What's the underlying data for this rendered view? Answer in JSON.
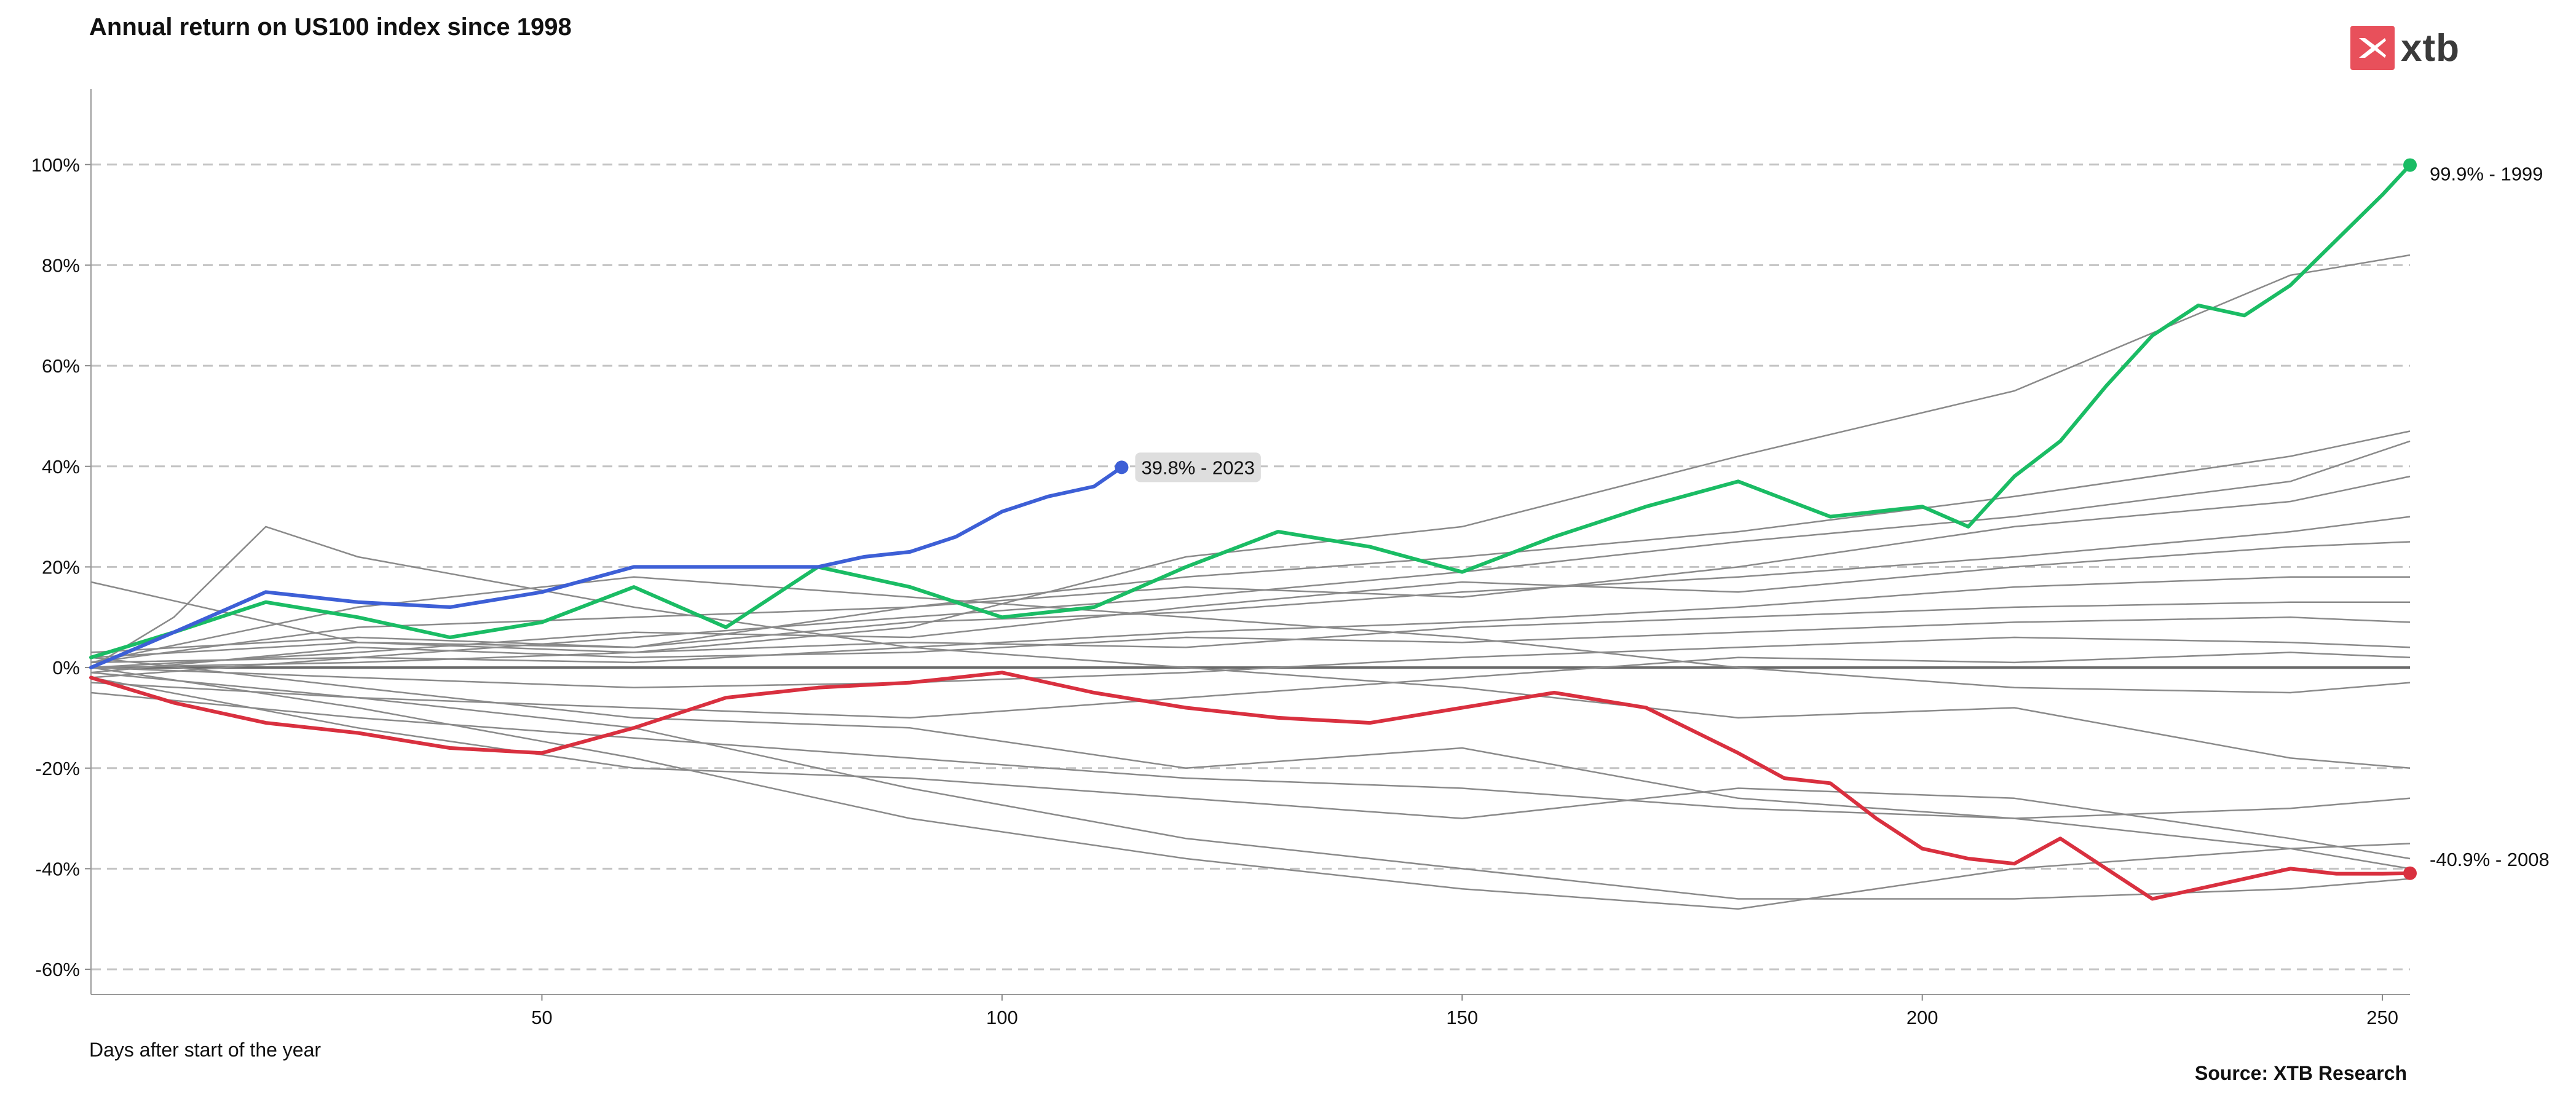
{
  "header": {
    "title": "Annual return on US100 index since 1998"
  },
  "brand": {
    "logo_text": "xtb",
    "logo_color": "#e8505b"
  },
  "footer": {
    "xlabel": "Days after start of the year",
    "source": "Source: XTB Research"
  },
  "chart_data": {
    "type": "line",
    "title": "Annual return on US100 index since 1998",
    "xlabel": "Days after start of the year",
    "ylabel": "",
    "xlim": [
      1,
      253
    ],
    "ylim": [
      -65,
      115
    ],
    "x_ticks": [
      "50",
      "100",
      "150",
      "200",
      "250"
    ],
    "y_ticks": [
      "100%",
      "80%",
      "60%",
      "40%",
      "20%",
      "0%",
      "-20%",
      "-40%",
      "-60%"
    ],
    "grid": "horizontal dashed",
    "highlighted_series": [
      {
        "year": "1999",
        "label": "99.9% - 1999",
        "color": "#1abc64",
        "final_return": 99.9,
        "x": [
          1,
          10,
          20,
          30,
          40,
          50,
          60,
          70,
          80,
          90,
          100,
          110,
          120,
          130,
          140,
          150,
          160,
          170,
          180,
          190,
          200,
          205,
          210,
          215,
          220,
          225,
          230,
          235,
          240,
          245,
          250,
          253
        ],
        "y": [
          2,
          7,
          13,
          10,
          6,
          9,
          16,
          8,
          20,
          16,
          10,
          12,
          20,
          27,
          24,
          19,
          26,
          32,
          37,
          30,
          32,
          28,
          38,
          45,
          56,
          66,
          72,
          70,
          76,
          85,
          94,
          99.9
        ]
      },
      {
        "year": "2008",
        "label": "-40.9% - 2008",
        "color": "#d9303f",
        "final_return": -40.9,
        "x": [
          1,
          10,
          20,
          30,
          40,
          50,
          60,
          70,
          80,
          90,
          100,
          110,
          120,
          130,
          140,
          150,
          160,
          170,
          180,
          185,
          190,
          195,
          200,
          205,
          210,
          215,
          220,
          225,
          230,
          235,
          240,
          245,
          250,
          253
        ],
        "y": [
          -2,
          -7,
          -11,
          -13,
          -16,
          -17,
          -12,
          -6,
          -4,
          -3,
          -1,
          -5,
          -8,
          -10,
          -11,
          -8,
          -5,
          -8,
          -17,
          -22,
          -23,
          -30,
          -36,
          -38,
          -39,
          -34,
          -40,
          -46,
          -44,
          -42,
          -40,
          -41,
          -41,
          -40.9
        ]
      },
      {
        "year": "2023",
        "label": "39.8% - 2023",
        "color": "#3d5fd6",
        "final_return": 39.8,
        "x": [
          1,
          10,
          20,
          30,
          40,
          50,
          60,
          65,
          70,
          80,
          85,
          90,
          95,
          100,
          105,
          110,
          113
        ],
        "y": [
          0,
          7,
          15,
          13,
          12,
          15,
          20,
          20,
          20,
          20,
          22,
          23,
          26,
          31,
          34,
          36,
          39.8
        ]
      }
    ],
    "background_series_color": "#8a8a8a",
    "background_series": [
      {
        "x": [
          1,
          30,
          60,
          90,
          120,
          150,
          180,
          210,
          240,
          253
        ],
        "y": [
          17,
          5,
          3,
          8,
          22,
          28,
          42,
          55,
          78,
          82
        ]
      },
      {
        "x": [
          1,
          30,
          60,
          90,
          120,
          150,
          180,
          210,
          240,
          253
        ],
        "y": [
          3,
          6,
          4,
          12,
          18,
          22,
          27,
          34,
          42,
          47
        ]
      },
      {
        "x": [
          1,
          30,
          60,
          90,
          120,
          150,
          180,
          210,
          240,
          253
        ],
        "y": [
          -2,
          2,
          6,
          10,
          14,
          19,
          25,
          30,
          37,
          45
        ]
      },
      {
        "x": [
          1,
          30,
          60,
          90,
          120,
          150,
          180,
          210,
          240,
          253
        ],
        "y": [
          1,
          8,
          10,
          12,
          16,
          14,
          20,
          28,
          33,
          38
        ]
      },
      {
        "x": [
          1,
          30,
          60,
          90,
          120,
          150,
          180,
          210,
          240,
          253
        ],
        "y": [
          2,
          5,
          4,
          9,
          11,
          15,
          18,
          22,
          27,
          30
        ]
      },
      {
        "x": [
          1,
          30,
          60,
          90,
          120,
          150,
          180,
          210,
          240,
          253
        ],
        "y": [
          0,
          3,
          7,
          6,
          12,
          17,
          15,
          20,
          24,
          25
        ]
      },
      {
        "x": [
          1,
          30,
          60,
          90,
          120,
          150,
          180,
          210,
          240,
          253
        ],
        "y": [
          1,
          2,
          1,
          4,
          7,
          9,
          12,
          16,
          18,
          18
        ]
      },
      {
        "x": [
          1,
          30,
          60,
          90,
          120,
          150,
          180,
          210,
          240,
          253
        ],
        "y": [
          0,
          1,
          3,
          5,
          4,
          8,
          10,
          12,
          13,
          13
        ]
      },
      {
        "x": [
          1,
          30,
          60,
          90,
          120,
          150,
          180,
          210,
          240,
          253
        ],
        "y": [
          -1,
          4,
          2,
          3,
          6,
          5,
          7,
          9,
          10,
          9
        ]
      },
      {
        "x": [
          1,
          30,
          60,
          90,
          120,
          150,
          180,
          210,
          240,
          253
        ],
        "y": [
          0,
          -2,
          -4,
          -3,
          -1,
          2,
          4,
          6,
          5,
          4
        ]
      },
      {
        "x": [
          1,
          30,
          60,
          90,
          120,
          150,
          180,
          210,
          240,
          253
        ],
        "y": [
          -3,
          -6,
          -8,
          -10,
          -6,
          -2,
          2,
          1,
          3,
          2
        ]
      },
      {
        "x": [
          1,
          30,
          60,
          90,
          120,
          150,
          180,
          210,
          240,
          253
        ],
        "y": [
          1,
          12,
          18,
          14,
          10,
          6,
          0,
          -4,
          -5,
          -3
        ]
      },
      {
        "x": [
          1,
          10,
          20,
          30,
          60,
          90,
          120,
          150,
          180,
          210,
          240,
          253
        ],
        "y": [
          0,
          10,
          28,
          22,
          12,
          4,
          0,
          -4,
          -10,
          -8,
          -18,
          -20
        ]
      },
      {
        "x": [
          1,
          30,
          60,
          90,
          120,
          150,
          180,
          210,
          240,
          253
        ],
        "y": [
          -5,
          -10,
          -14,
          -18,
          -22,
          -24,
          -28,
          -30,
          -28,
          -26
        ]
      },
      {
        "x": [
          1,
          30,
          60,
          90,
          120,
          150,
          180,
          210,
          240,
          253
        ],
        "y": [
          -2,
          -12,
          -20,
          -22,
          -26,
          -30,
          -24,
          -26,
          -34,
          -38
        ]
      },
      {
        "x": [
          1,
          30,
          60,
          90,
          120,
          150,
          180,
          210,
          240,
          253
        ],
        "y": [
          0,
          -8,
          -18,
          -30,
          -38,
          -44,
          -48,
          -40,
          -36,
          -35
        ]
      },
      {
        "x": [
          1,
          30,
          60,
          90,
          120,
          150,
          180,
          210,
          240,
          253
        ],
        "y": [
          -1,
          -6,
          -12,
          -24,
          -34,
          -40,
          -46,
          -46,
          -44,
          -42
        ]
      },
      {
        "x": [
          1,
          30,
          60,
          90,
          120,
          150,
          180,
          210,
          240,
          253
        ],
        "y": [
          2,
          -4,
          -10,
          -12,
          -20,
          -16,
          -26,
          -30,
          -36,
          -40
        ]
      }
    ],
    "annotations": [
      {
        "text": "99.9% - 1999",
        "series": "1999"
      },
      {
        "text": "39.8% - 2023",
        "series": "2023",
        "boxed": true
      },
      {
        "text": "-40.9% - 2008",
        "series": "2008"
      }
    ]
  }
}
